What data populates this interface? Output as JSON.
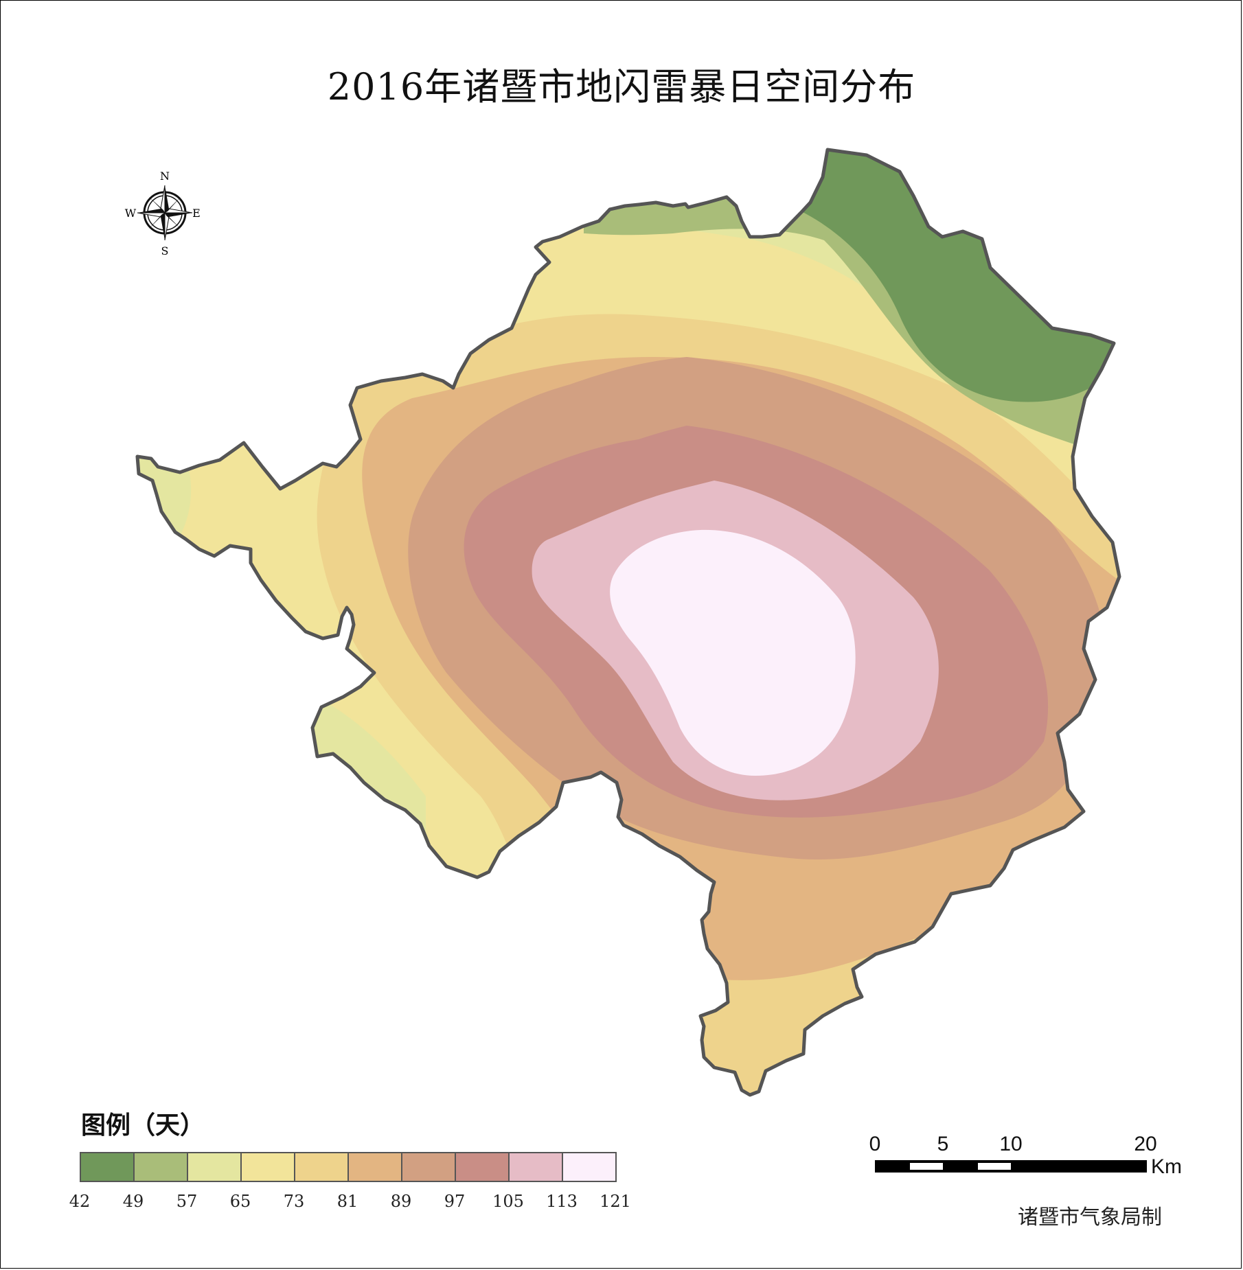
{
  "title": "2016年诸暨市地闪雷暴日空间分布",
  "compass": {
    "n": "N",
    "s": "S",
    "e": "E",
    "w": "W"
  },
  "legend": {
    "title": "图例（天）",
    "breaks": [
      "42",
      "49",
      "57",
      "65",
      "73",
      "81",
      "89",
      "97",
      "105",
      "113",
      "121"
    ],
    "colors": [
      "#70985a",
      "#a9bd79",
      "#e4e6a0",
      "#f2e49a",
      "#eed38c",
      "#e3b582",
      "#d2a082",
      "#c98e86",
      "#e6bcc6",
      "#fcf0fb"
    ]
  },
  "scale_bar": {
    "labels": [
      "0",
      "5",
      "10",
      "20"
    ],
    "unit": "Km"
  },
  "credit": "诸暨市气象局制"
}
